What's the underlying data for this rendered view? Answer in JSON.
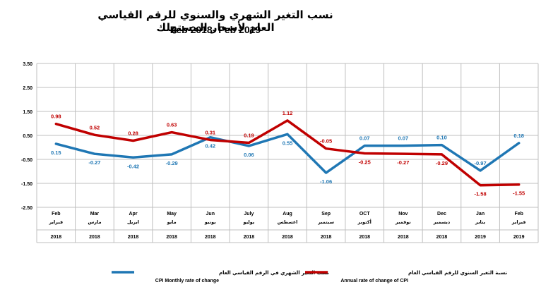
{
  "title_ar": "نسب التغير الشهري والسنوي للرقم القياسي العام لأسعار المستهلك",
  "title_en": "Feb 2018- Feb 2019",
  "colors": {
    "monthly": "#1f77b4",
    "annual": "#c00000",
    "grid": "#bfbfbf",
    "axis": "#808080"
  },
  "chart_data": {
    "type": "line",
    "ylim": [
      -2.5,
      3.5
    ],
    "yticks": [
      "3.50",
      "2.50",
      "1.50",
      "0.50",
      "-0.50",
      "-1.50",
      "-2.50"
    ],
    "categories_en": [
      "Feb",
      "Mar",
      "Apr",
      "May",
      "Jun",
      "July",
      "Aug",
      "Sep",
      "OCT",
      "Nov",
      "Dec",
      "Jan",
      "Feb"
    ],
    "categories_ar": [
      "فبراير",
      "مارس",
      "ابريل",
      "مايو",
      "يونيو",
      "يوليو",
      "اغسطس",
      "سبتمبر",
      "أكتوبر",
      "نوفمبر",
      "ديسمبر",
      "يناير",
      "فبراير"
    ],
    "years": [
      "2018",
      "2018",
      "2018",
      "2018",
      "2018",
      "2018",
      "2018",
      "2018",
      "2018",
      "2018",
      "2018",
      "2019",
      "2019"
    ],
    "series": [
      {
        "key": "monthly",
        "name_ar": "نسب التغير الشهري في الرقم القياسي العام",
        "name_en": "CPI Monthly rate of change",
        "values": [
          0.15,
          -0.27,
          -0.42,
          -0.29,
          0.42,
          0.06,
          0.55,
          -1.06,
          0.07,
          0.07,
          0.1,
          -0.97,
          0.18
        ],
        "labels": [
          "0.15",
          "-0.27",
          "-0.42",
          "-0.29",
          "0.42",
          "0.06",
          "0.55",
          "-1.06",
          "0.07",
          "0.07",
          "0.10",
          "-0.97",
          "0.18"
        ],
        "label_pos": [
          "below",
          "below",
          "below",
          "below",
          "below",
          "below",
          "below",
          "below",
          "above",
          "above",
          "above",
          "above",
          "above"
        ]
      },
      {
        "key": "annual",
        "name_ar": "نسبة التغير السنوي للرقم القياسي العام",
        "name_en": "Annual rate of change of CPI",
        "values": [
          0.98,
          0.52,
          0.28,
          0.63,
          0.31,
          0.19,
          1.12,
          -0.05,
          -0.25,
          -0.27,
          -0.29,
          -1.58,
          -1.55
        ],
        "labels": [
          "0.98",
          "0.52",
          "0.28",
          "0.63",
          "0.31",
          "0.19",
          "1.12",
          "-0.05",
          "-0.25",
          "-0.27",
          "-0.29",
          "-1.58",
          "-1.55"
        ],
        "label_pos": [
          "above",
          "above",
          "above",
          "above",
          "above",
          "above",
          "above",
          "above",
          "below",
          "below",
          "below",
          "below",
          "below"
        ]
      }
    ],
    "grid": true,
    "legend": "bottom"
  }
}
